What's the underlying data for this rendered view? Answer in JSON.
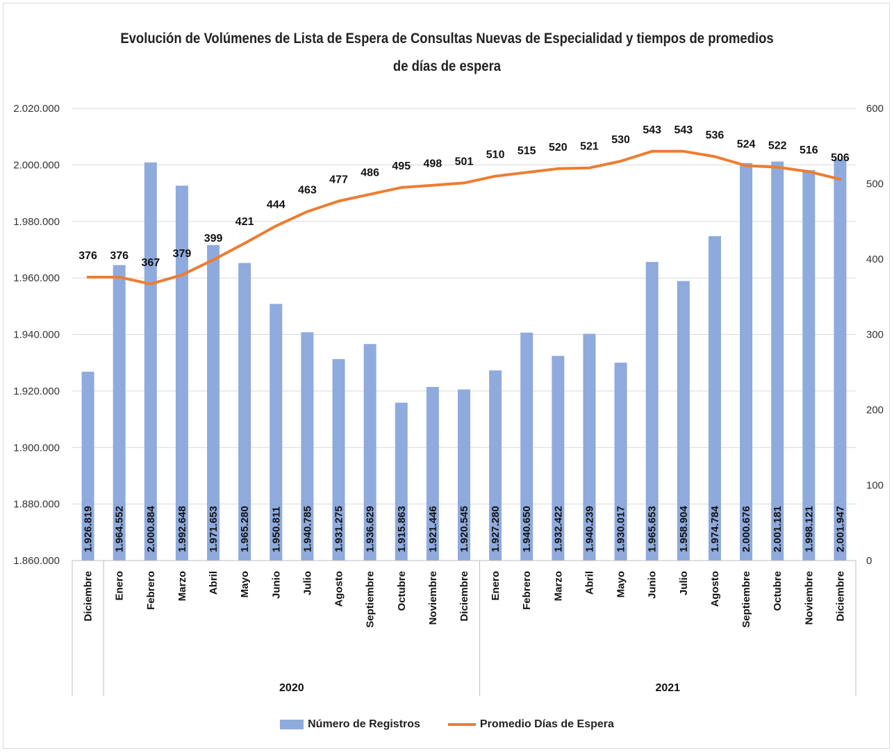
{
  "chart_data": {
    "type": "bar",
    "title_lines": [
      "Evolución de Volúmenes de Lista de Espera de Consultas Nuevas de Especialidad y tiempos de promedios",
      "de días de espera"
    ],
    "categories": [
      "Diciembre",
      "Enero",
      "Febrero",
      "Marzo",
      "Abril",
      "Mayo",
      "Junio",
      "Julio",
      "Agosto",
      "Septiembre",
      "Octubre",
      "Noviembre",
      "Diciembre",
      "Enero",
      "Febrero",
      "Marzo",
      "Abril",
      "Mayo",
      "Junio",
      "Julio",
      "Agosto",
      "Septiembre",
      "Octubre",
      "Noviembre",
      "Diciembre"
    ],
    "groups": [
      {
        "label": "",
        "count": 1
      },
      {
        "label": "2020",
        "count": 12
      },
      {
        "label": "2021",
        "count": 12
      }
    ],
    "series": [
      {
        "name": "Número de Registros",
        "type": "bar",
        "axis": "left",
        "values": [
          1926819,
          1964552,
          2000884,
          1992648,
          1971653,
          1965280,
          1950811,
          1940785,
          1931275,
          1936629,
          1915863,
          1921446,
          1920545,
          1927280,
          1940650,
          1932422,
          1940239,
          1930017,
          1965653,
          1958904,
          1974784,
          2000676,
          2001181,
          1998121,
          2001947
        ],
        "labels": [
          "1.926.819",
          "1.964.552",
          "2.000.884",
          "1.992.648",
          "1.971.653",
          "1.965.280",
          "1.950.811",
          "1.940.785",
          "1.931.275",
          "1.936.629",
          "1.915.863",
          "1.921.446",
          "1.920.545",
          "1.927.280",
          "1.940.650",
          "1.932.422",
          "1.940.239",
          "1.930.017",
          "1.965.653",
          "1.958.904",
          "1.974.784",
          "2.000.676",
          "2.001.181",
          "1.998.121",
          "2.001.947"
        ],
        "color": "#8faadc"
      },
      {
        "name": "Promedio Días de Espera",
        "type": "line",
        "axis": "right",
        "values": [
          376,
          376,
          367,
          379,
          399,
          421,
          444,
          463,
          477,
          486,
          495,
          498,
          501,
          510,
          515,
          520,
          521,
          530,
          543,
          543,
          536,
          524,
          522,
          516,
          506
        ],
        "color": "#ed7d31"
      }
    ],
    "y_left": {
      "min": 1860000,
      "max": 2020000,
      "ticks": [
        1860000,
        1880000,
        1900000,
        1920000,
        1940000,
        1960000,
        1980000,
        2000000,
        2020000
      ],
      "tick_labels": [
        "1.860.000",
        "1.880.000",
        "1.900.000",
        "1.920.000",
        "1.940.000",
        "1.960.000",
        "1.980.000",
        "2.000.000",
        "2.020.000"
      ]
    },
    "y_right": {
      "min": 0,
      "max": 600,
      "ticks": [
        0,
        100,
        200,
        300,
        400,
        500,
        600
      ],
      "tick_labels": [
        "0",
        "100",
        "200",
        "300",
        "400",
        "500",
        "600"
      ]
    },
    "grid": true,
    "legend_position": "bottom"
  }
}
